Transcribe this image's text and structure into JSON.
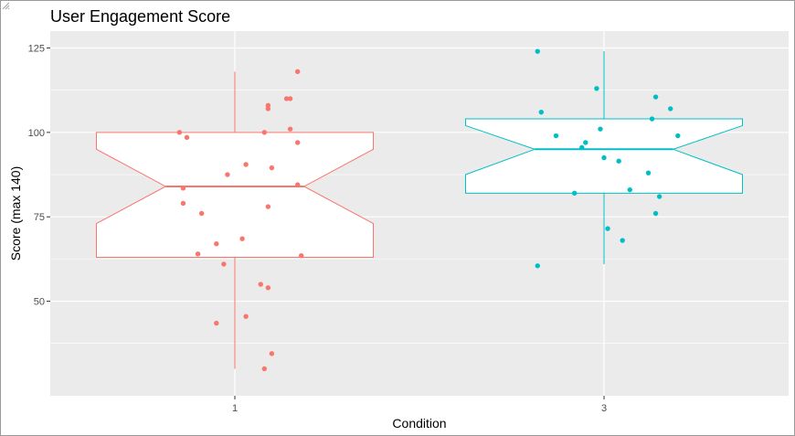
{
  "chart_data": {
    "type": "boxplot",
    "title": "User Engagement Score",
    "xlabel": "Condition",
    "ylabel": "Score (max 140)",
    "ylim": [
      22,
      130
    ],
    "yticks": [
      50,
      75,
      100,
      125
    ],
    "categories": [
      "1",
      "3"
    ],
    "colors": {
      "1": "#F8766D",
      "3": "#00BFC4"
    },
    "panel_background": "#EBEBEB",
    "notched": true,
    "boxes": [
      {
        "category": "1",
        "lower_whisker": 30,
        "q1": 63,
        "notch_lower": 73,
        "median": 84,
        "notch_upper": 95,
        "q3": 100,
        "upper_whisker": 118
      },
      {
        "category": "3",
        "lower_whisker": 61,
        "q1": 82,
        "notch_lower": 87.5,
        "median": 95,
        "notch_upper": 102,
        "q3": 104,
        "upper_whisker": 124
      }
    ],
    "points": [
      {
        "category": "1",
        "jitter": -0.15,
        "value": 100
      },
      {
        "category": "1",
        "jitter": -0.13,
        "value": 98.5
      },
      {
        "category": "1",
        "jitter": -0.14,
        "value": 83.5
      },
      {
        "category": "1",
        "jitter": -0.14,
        "value": 79
      },
      {
        "category": "1",
        "jitter": -0.09,
        "value": 76
      },
      {
        "category": "1",
        "jitter": -0.05,
        "value": 67
      },
      {
        "category": "1",
        "jitter": -0.1,
        "value": 64
      },
      {
        "category": "1",
        "jitter": -0.03,
        "value": 61
      },
      {
        "category": "1",
        "jitter": -0.05,
        "value": 43.5
      },
      {
        "category": "1",
        "jitter": -0.02,
        "value": 87.5
      },
      {
        "category": "1",
        "jitter": 0.03,
        "value": 90.5
      },
      {
        "category": "1",
        "jitter": 0.02,
        "value": 68.5
      },
      {
        "category": "1",
        "jitter": 0.03,
        "value": 45.5
      },
      {
        "category": "1",
        "jitter": 0.07,
        "value": 55
      },
      {
        "category": "1",
        "jitter": 0.08,
        "value": 30
      },
      {
        "category": "1",
        "jitter": 0.09,
        "value": 107
      },
      {
        "category": "1",
        "jitter": 0.09,
        "value": 108
      },
      {
        "category": "1",
        "jitter": 0.08,
        "value": 100
      },
      {
        "category": "1",
        "jitter": 0.1,
        "value": 89.5
      },
      {
        "category": "1",
        "jitter": 0.09,
        "value": 78
      },
      {
        "category": "1",
        "jitter": 0.09,
        "value": 54
      },
      {
        "category": "1",
        "jitter": 0.1,
        "value": 34.5
      },
      {
        "category": "1",
        "jitter": 0.14,
        "value": 110
      },
      {
        "category": "1",
        "jitter": 0.15,
        "value": 110
      },
      {
        "category": "1",
        "jitter": 0.15,
        "value": 101
      },
      {
        "category": "1",
        "jitter": 0.17,
        "value": 84.5
      },
      {
        "category": "1",
        "jitter": 0.17,
        "value": 97
      },
      {
        "category": "1",
        "jitter": 0.17,
        "value": 118
      },
      {
        "category": "1",
        "jitter": 0.18,
        "value": 63.5
      },
      {
        "category": "3",
        "jitter": -0.18,
        "value": 124
      },
      {
        "category": "3",
        "jitter": -0.17,
        "value": 106
      },
      {
        "category": "3",
        "jitter": -0.13,
        "value": 99
      },
      {
        "category": "3",
        "jitter": -0.08,
        "value": 82
      },
      {
        "category": "3",
        "jitter": -0.18,
        "value": 60.5
      },
      {
        "category": "3",
        "jitter": -0.05,
        "value": 97
      },
      {
        "category": "3",
        "jitter": -0.06,
        "value": 95.5
      },
      {
        "category": "3",
        "jitter": -0.02,
        "value": 113
      },
      {
        "category": "3",
        "jitter": -0.01,
        "value": 101
      },
      {
        "category": "3",
        "jitter": 0.0,
        "value": 92.5
      },
      {
        "category": "3",
        "jitter": 0.04,
        "value": 91.5
      },
      {
        "category": "3",
        "jitter": 0.01,
        "value": 71.5
      },
      {
        "category": "3",
        "jitter": 0.05,
        "value": 68
      },
      {
        "category": "3",
        "jitter": 0.07,
        "value": 83
      },
      {
        "category": "3",
        "jitter": 0.12,
        "value": 88
      },
      {
        "category": "3",
        "jitter": 0.13,
        "value": 104
      },
      {
        "category": "3",
        "jitter": 0.14,
        "value": 110.5
      },
      {
        "category": "3",
        "jitter": 0.14,
        "value": 76
      },
      {
        "category": "3",
        "jitter": 0.15,
        "value": 81
      },
      {
        "category": "3",
        "jitter": 0.18,
        "value": 107
      },
      {
        "category": "3",
        "jitter": 0.2,
        "value": 99
      }
    ]
  }
}
